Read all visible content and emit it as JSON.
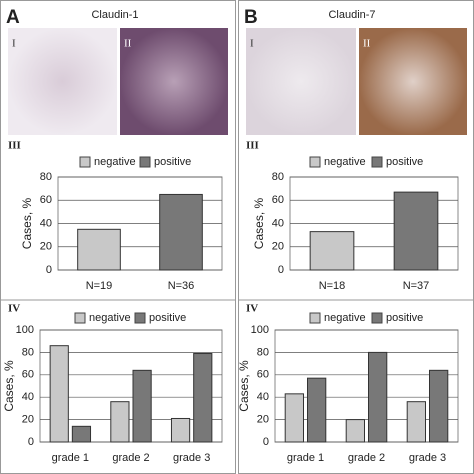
{
  "panels": [
    {
      "letter": "A",
      "title": "Claudin-1",
      "images": [
        "I",
        "II"
      ],
      "sections": [
        "III",
        "IV"
      ]
    },
    {
      "letter": "B",
      "title": "Claudin-7",
      "images": [
        "I",
        "II"
      ],
      "sections": [
        "III",
        "IV"
      ]
    }
  ],
  "chart_data": [
    {
      "type": "bar",
      "y_label": "Cases, %",
      "categories": [
        "N=19",
        "N=36"
      ],
      "series": [
        {
          "name": "negative",
          "color": "#c8c8c8",
          "values": [
            35,
            null
          ]
        },
        {
          "name": "positive",
          "color": "#787878",
          "values": [
            null,
            65
          ]
        }
      ],
      "ylim": [
        0,
        80
      ],
      "yticks": [
        0,
        20,
        40,
        60,
        80
      ],
      "grid": true
    },
    {
      "type": "bar",
      "y_label": "Cases, %",
      "categories": [
        "grade 1",
        "grade 2",
        "grade 3"
      ],
      "series": [
        {
          "name": "negative",
          "color": "#c8c8c8",
          "values": [
            86,
            36,
            21
          ]
        },
        {
          "name": "positive",
          "color": "#787878",
          "values": [
            14,
            64,
            79
          ]
        }
      ],
      "ylim": [
        0,
        100
      ],
      "yticks": [
        0,
        20,
        40,
        60,
        80,
        100
      ],
      "grid": true
    },
    {
      "type": "bar",
      "y_label": "Cases, %",
      "categories": [
        "N=18",
        "N=37"
      ],
      "series": [
        {
          "name": "negative",
          "color": "#c8c8c8",
          "values": [
            33,
            null
          ]
        },
        {
          "name": "positive",
          "color": "#787878",
          "values": [
            null,
            67
          ]
        }
      ],
      "ylim": [
        0,
        80
      ],
      "yticks": [
        0,
        20,
        40,
        60,
        80
      ],
      "grid": true
    },
    {
      "type": "bar",
      "y_label": "Cases, %",
      "categories": [
        "grade 1",
        "grade 2",
        "grade 3"
      ],
      "series": [
        {
          "name": "negative",
          "color": "#c8c8c8",
          "values": [
            43,
            20,
            36
          ]
        },
        {
          "name": "positive",
          "color": "#787878",
          "values": [
            57,
            80,
            64
          ]
        }
      ],
      "ylim": [
        0,
        100
      ],
      "yticks": [
        0,
        20,
        40,
        60,
        80,
        100
      ],
      "grid": true
    }
  ]
}
